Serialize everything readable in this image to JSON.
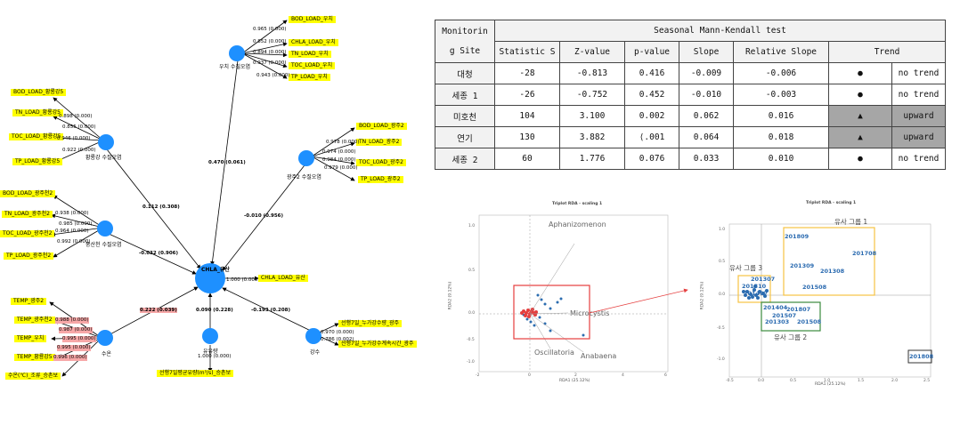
{
  "path_model": {
    "central_node": "CHLA_유산",
    "central_label": "CHLA_LOAD_유산",
    "central_loading": "1.000 (0.000)",
    "nodes": {
      "woochi": {
        "caption": "우치 수질오염",
        "labels": [
          "BOD_LOAD_우치",
          "CHLA_LOAD_우치",
          "TN_LOAD_우치",
          "TOC_LOAD_우치",
          "TP_LOAD_우치"
        ],
        "loadings": [
          "0.965 (0.000)",
          "0.852 (0.000)",
          "0.894 (0.000)",
          "0.937 (0.000)",
          "0.943 (0.000)"
        ],
        "path": "0.470 (0.061)"
      },
      "hwangryong": {
        "caption": "황룡강 수질오염",
        "labels": [
          "BOD_LOAD_황룡강5",
          "TN_LOAD_황룡강5",
          "TOC_LOAD_황룡강5",
          "TP_LOAD_황룡강5"
        ],
        "loadings": [
          "0.898 (0.000)",
          "0.855 (0.000)",
          "0.946 (0.000)",
          "0.922 (0.000)"
        ],
        "path": "0.112 (0.308)"
      },
      "gwangju2": {
        "caption": "광주2 수질오염",
        "labels": [
          "BOD_LOAD_광주2",
          "TN_LOAD_광주2",
          "TOC_LOAD_광주2",
          "TP_LOAD_광주2"
        ],
        "loadings": [
          "0.978 (0.000)",
          "0.974 (0.000)",
          "0.984 (0.000)",
          "0.979 (0.000)"
        ],
        "path": "-0.010 (0.956)"
      },
      "pungsan": {
        "caption": "풍산천 수질오염",
        "labels": [
          "BOD_LOAD_광주천2",
          "TN_LOAD_광주천2",
          "TOC_LOAD_광주천2",
          "TP_LOAD_광주천2"
        ],
        "loadings": [
          "0.938 (0.000)",
          "0.985 (0.000)",
          "0.964 (0.000)",
          "0.992 (0.000)"
        ],
        "path": "-0.032 (0.906)"
      },
      "suon": {
        "caption": "수온",
        "labels": [
          "TEMP_광주2",
          "TEMP_광주천2",
          "TEMP_우치",
          "TEMP_황룡강5",
          "수온(℃)_조류_승촌보"
        ],
        "loadings": [
          "0.988 (0.000)",
          "0.987 (0.000)",
          "0.995 (0.000)",
          "0.995 (0.000)",
          "0.996 (0.000)"
        ],
        "path": "0.222 (0.039)"
      },
      "yuryang": {
        "caption": "유유량",
        "labels": [
          "선행7일평균유량(m³/s)_승촌보"
        ],
        "loadings": [
          "1.000 (0.000)"
        ],
        "path": "0.090 (0.228)"
      },
      "gangsu": {
        "caption": "강수",
        "labels": [
          "선행7일_누가강수량_광주",
          "선행7일_누가강수계속시간_광주"
        ],
        "loadings": [
          "0.970 (0.000)",
          "0.786 (0.002)"
        ],
        "path": "-0.193 (0.208)"
      }
    }
  },
  "mk_table": {
    "col_site": [
      "Monitorin",
      "g Site"
    ],
    "group_header": "Seasonal  Mann-Kendall  test",
    "headers": [
      "Statistic  S",
      "Z-value",
      "p-value",
      "Slope",
      "Relative  Slope",
      "Trend"
    ],
    "rows": [
      {
        "site": "대청",
        "s": "-28",
        "z": "-0.813",
        "p": "0.416",
        "slope": "-0.009",
        "rel": "-0.006",
        "symbol": "●",
        "trend": "no  trend",
        "gray": false
      },
      {
        "site": "세종  1",
        "s": "-26",
        "z": "-0.752",
        "p": "0.452",
        "slope": "-0.010",
        "rel": "-0.003",
        "symbol": "●",
        "trend": "no  trend",
        "gray": false
      },
      {
        "site": "미호천",
        "s": "104",
        "z": "3.100",
        "p": "0.002",
        "slope": "0.062",
        "rel": "0.016",
        "symbol": "▲",
        "trend": "upward",
        "gray": true
      },
      {
        "site": "연기",
        "s": "130",
        "z": "3.882",
        "p": "⟨.001",
        "slope": "0.064",
        "rel": "0.018",
        "symbol": "▲",
        "trend": "upward",
        "gray": true
      },
      {
        "site": "세종  2",
        "s": "60",
        "z": "1.776",
        "p": "0.076",
        "slope": "0.033",
        "rel": "0.010",
        "symbol": "●",
        "trend": "no  trend",
        "gray": false
      }
    ]
  },
  "rda_left": {
    "title": "Triplot RDA - scaling 1",
    "xlabel": "RDA1 (25.12%)",
    "ylabel": "RDA2 (9.12%)",
    "xticks": [
      "-2",
      "0",
      "2",
      "4",
      "6"
    ],
    "yticks": [
      "1.0",
      "0.5",
      "0.0",
      "-0.5",
      "-1.0"
    ],
    "species": [
      "Aphanizomenon",
      "Microcystis",
      "Oscillatoria",
      "Anabaena"
    ]
  },
  "rda_right": {
    "title": "Triplot RDA - scaling 1",
    "xlabel": "RDA1 (25.12%)",
    "ylabel": "RDA2 (9.12%)",
    "xticks": [
      "-0.5",
      "0.0",
      "0.5",
      "1.0",
      "1.5",
      "2.0",
      "2.5"
    ],
    "yticks": [
      "1.0",
      "0.5",
      "0.0",
      "-0.5",
      "-1.0"
    ],
    "groups": [
      "유사 그룹 1",
      "유사 그룹 2",
      "유사 그룹 3"
    ],
    "sites_g1": [
      "201809",
      "201708",
      "201309",
      "201308",
      "201508"
    ],
    "sites_g3": [
      "201307",
      "201310",
      "201407"
    ],
    "sites_g2": [
      "201404",
      "201807",
      "201507",
      "201303",
      "201508"
    ],
    "outlier": "201808"
  }
}
